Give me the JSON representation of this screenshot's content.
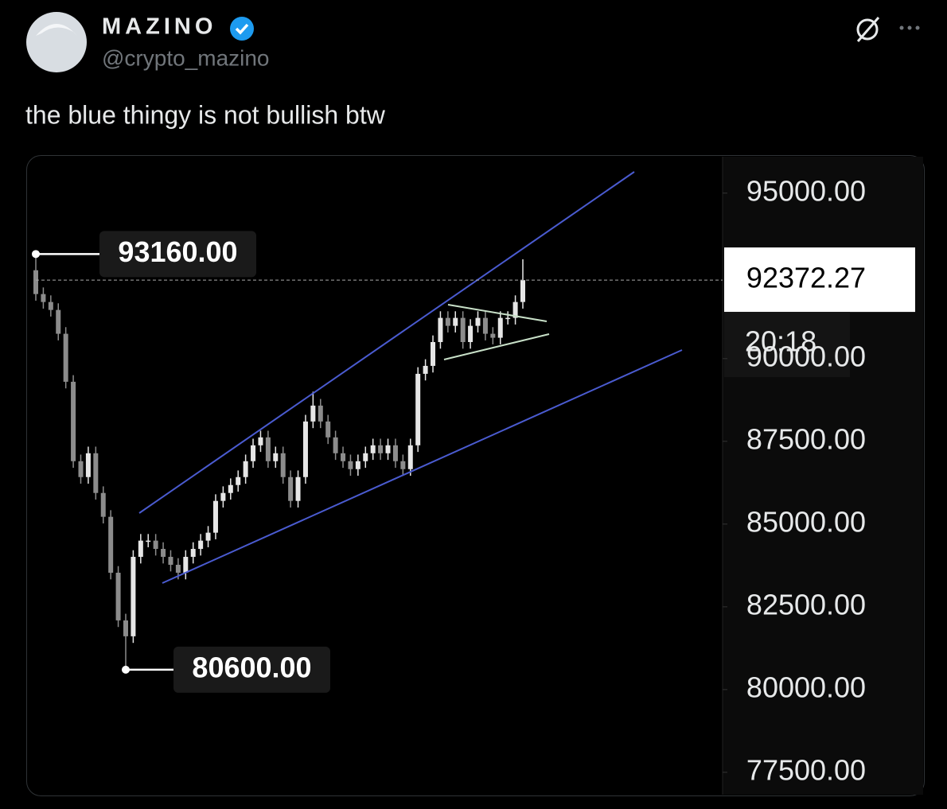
{
  "post": {
    "name": "MAZINO",
    "handle": "@crypto_mazino",
    "text": "the blue thingy is not bullish btw"
  },
  "chart_data": {
    "type": "candlestick",
    "categories": [
      null,
      null,
      null,
      null,
      null,
      null,
      null,
      null,
      null,
      null,
      null,
      null,
      null,
      null,
      null,
      null,
      null,
      null,
      null,
      null,
      null,
      null,
      null,
      null,
      null,
      null,
      null,
      null,
      null,
      null,
      null,
      null,
      null,
      null,
      null,
      null,
      null,
      null,
      null,
      null,
      null,
      null,
      null,
      null,
      null,
      null,
      null,
      null,
      null,
      null,
      null,
      null,
      null,
      null,
      null,
      null,
      null,
      null,
      null,
      null,
      null,
      null,
      null,
      null,
      null,
      null
    ],
    "open": [
      92670,
      91950,
      91710,
      91470,
      90750,
      89300,
      86900,
      86420,
      87140,
      85940,
      85220,
      83530,
      82090,
      81610,
      84010,
      84500,
      84500,
      84250,
      84010,
      83770,
      83530,
      84010,
      84250,
      84500,
      84740,
      85700,
      85940,
      86180,
      86420,
      86900,
      87380,
      87620,
      86900,
      87140,
      86420,
      85700,
      86420,
      88100,
      88580,
      88100,
      87620,
      87140,
      86900,
      86660,
      86900,
      87140,
      87380,
      87140,
      87380,
      86900,
      86660,
      87380,
      89540,
      89780,
      90500,
      91230,
      90990,
      91230,
      90500,
      90990,
      91230,
      90750,
      90630,
      91230,
      91230,
      91710
    ],
    "high": [
      93160,
      92150,
      91910,
      91670,
      90950,
      89500,
      87100,
      87340,
      87340,
      86140,
      85420,
      83730,
      82290,
      84210,
      84700,
      84700,
      84700,
      84450,
      84210,
      83970,
      84210,
      84450,
      84700,
      84940,
      85900,
      86140,
      86380,
      86620,
      87100,
      87580,
      87820,
      87820,
      87340,
      87340,
      86620,
      86620,
      88300,
      89000,
      88780,
      88300,
      87820,
      87340,
      87100,
      87100,
      87340,
      87580,
      87580,
      87580,
      87580,
      87100,
      87580,
      89740,
      89980,
      90700,
      91430,
      91430,
      91430,
      91430,
      91190,
      91430,
      91430,
      90950,
      91430,
      91430,
      91910,
      93000
    ],
    "low": [
      91750,
      91510,
      91270,
      90550,
      89100,
      86700,
      86220,
      86220,
      85740,
      85020,
      83330,
      81890,
      80600,
      81410,
      83810,
      84300,
      84050,
      83810,
      83570,
      83330,
      83330,
      83810,
      84050,
      84300,
      84540,
      85500,
      85740,
      85980,
      86220,
      86700,
      87180,
      86700,
      86700,
      86220,
      85500,
      85500,
      86220,
      87900,
      87900,
      87420,
      86940,
      86700,
      86460,
      86460,
      86700,
      86940,
      86940,
      86940,
      86700,
      86460,
      86460,
      87180,
      89340,
      89580,
      90300,
      90790,
      90790,
      90300,
      90300,
      90790,
      90550,
      90430,
      90430,
      91030,
      91030,
      91510
    ],
    "close": [
      91950,
      91710,
      91470,
      90750,
      89300,
      86900,
      86420,
      87140,
      85940,
      85220,
      83530,
      82090,
      81610,
      84010,
      84500,
      84500,
      84250,
      84010,
      83770,
      83530,
      84010,
      84250,
      84500,
      84740,
      85700,
      85940,
      86180,
      86420,
      86900,
      87380,
      87620,
      86900,
      87140,
      86420,
      85700,
      86420,
      88100,
      88580,
      88100,
      87620,
      87140,
      86900,
      86660,
      86900,
      87140,
      87380,
      87140,
      87380,
      86900,
      86660,
      87380,
      89540,
      89780,
      90500,
      91230,
      90990,
      91230,
      90500,
      90990,
      91230,
      90750,
      90630,
      91230,
      91230,
      91710,
      92370
    ],
    "up_color": "#e6e6e6",
    "down_color": "#8c8c8c",
    "ylim": [
      76800,
      96100
    ],
    "yticks": [
      {
        "value": 95000,
        "label": "95000.00"
      },
      {
        "value": 90000,
        "label": "90000.00"
      },
      {
        "value": 87500,
        "label": "87500.00"
      },
      {
        "value": 85000,
        "label": "85000.00"
      },
      {
        "value": 82500,
        "label": "82500.00"
      },
      {
        "value": 80000,
        "label": "80000.00"
      },
      {
        "value": 77500,
        "label": "77500.00"
      }
    ],
    "high_marker": {
      "value": 93160,
      "label": "93160.00"
    },
    "low_marker": {
      "value": 80600,
      "label": "80600.00"
    },
    "last_price": 92372.27,
    "countdown": "20:18"
  }
}
